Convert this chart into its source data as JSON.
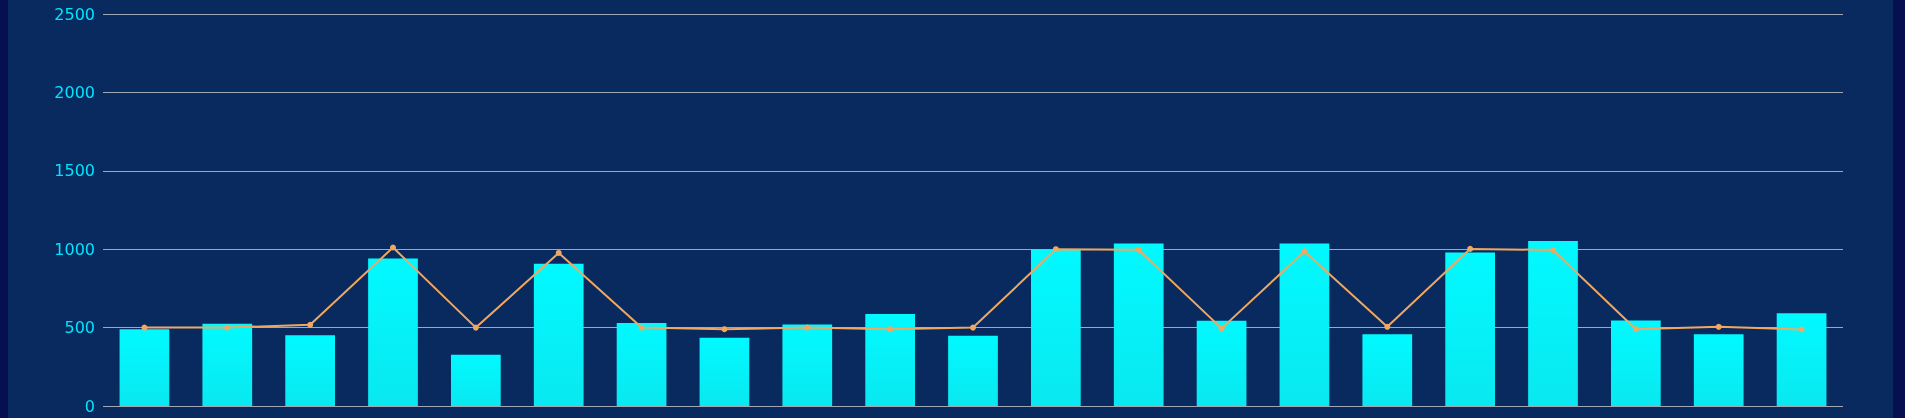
{
  "chart_data": {
    "type": "bar",
    "categories": [
      null,
      null,
      null,
      null,
      null,
      null,
      null,
      null,
      null,
      null,
      null,
      null,
      null,
      null,
      null,
      null,
      null,
      null,
      null,
      null,
      null
    ],
    "series": [
      {
        "color": "#00faff",
        "values": [
          490,
          524,
          452,
          940,
          327,
          907,
          530,
          435,
          519,
          586,
          448,
          1000,
          1037,
          544,
          1037,
          457,
          979,
          1052,
          545,
          457,
          592
        ]
      },
      {
        "type": "line",
        "color": "#f0a860",
        "values": [
          500,
          500,
          518,
          1011,
          500,
          976,
          500,
          490,
          500,
          490,
          500,
          1000,
          996,
          495,
          986,
          505,
          1002,
          995,
          490,
          505,
          488
        ]
      }
    ],
    "ylim": [
      0,
      2500
    ],
    "yticks": [
      0,
      500,
      1000,
      1500,
      2000,
      2500
    ],
    "grid": "y",
    "tick_labels": "y",
    "marker": "circle",
    "line_style": "solid"
  }
}
